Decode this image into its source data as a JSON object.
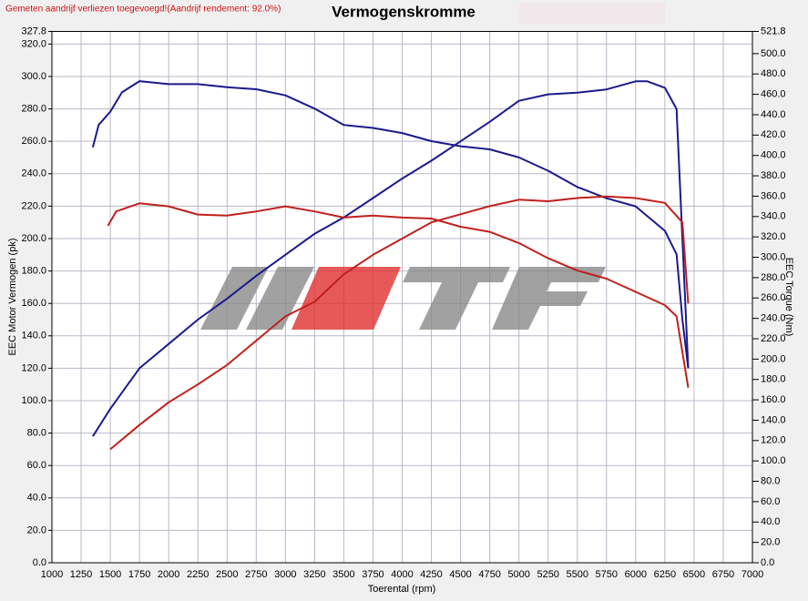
{
  "chart_data": {
    "type": "line",
    "title": "Vermogenskromme",
    "note": "Gemeten aandrijf verliezen toegevoegd!(Aandrijf rendement: 92.0%)",
    "xlabel": "Toerental (rpm)",
    "ylabel": "EEC Motor Vermogen (pk)",
    "y2label": "EEC Torque (Nm)",
    "xlim": [
      1000,
      7000
    ],
    "xticks": [
      1000,
      1250,
      1500,
      1750,
      2000,
      2250,
      2500,
      2750,
      3000,
      3250,
      3500,
      3750,
      4000,
      4250,
      4500,
      4750,
      5000,
      5250,
      5500,
      5750,
      6000,
      6250,
      6500,
      6750,
      7000
    ],
    "ylim": [
      0,
      327.8
    ],
    "yticks": [
      {
        "value": 0,
        "label": "0.0"
      },
      {
        "value": 20,
        "label": "20.0"
      },
      {
        "value": 40,
        "label": "40.0"
      },
      {
        "value": 60,
        "label": "60.0"
      },
      {
        "value": 80,
        "label": "80.0"
      },
      {
        "value": 100,
        "label": "100.0"
      },
      {
        "value": 120,
        "label": "120.0"
      },
      {
        "value": 140,
        "label": "140.0"
      },
      {
        "value": 160,
        "label": "160.0"
      },
      {
        "value": 180,
        "label": "180.0"
      },
      {
        "value": 200,
        "label": "200.0"
      },
      {
        "value": 220,
        "label": "220.0"
      },
      {
        "value": 240,
        "label": "240.0"
      },
      {
        "value": 260,
        "label": "260.0"
      },
      {
        "value": 280,
        "label": "280.0"
      },
      {
        "value": 300,
        "label": "300.0"
      },
      {
        "value": 320,
        "label": "320.0"
      },
      327.8
    ],
    "y2lim": [
      0,
      521.8
    ],
    "y2ticks": [
      {
        "value": 0,
        "label": "0.0"
      },
      {
        "value": 20,
        "label": "20.0"
      },
      {
        "value": 40,
        "label": "40.0"
      },
      {
        "value": 60,
        "label": "60.0"
      },
      {
        "value": 80,
        "label": "80.0"
      },
      {
        "value": 100,
        "label": "100.0"
      },
      {
        "value": 120,
        "label": "120.0"
      },
      {
        "value": 140,
        "label": "140.0"
      },
      {
        "value": 160,
        "label": "160.0"
      },
      {
        "value": 180,
        "label": "180.0"
      },
      {
        "value": 200,
        "label": "200.0"
      },
      {
        "value": 220,
        "label": "220.0"
      },
      {
        "value": 240,
        "label": "240.0"
      },
      {
        "value": 260,
        "label": "260.0"
      },
      {
        "value": 280,
        "label": "280.0"
      },
      {
        "value": 300,
        "label": "300.0"
      },
      {
        "value": 320,
        "label": "320.0"
      },
      {
        "value": 340,
        "label": "340.0"
      },
      {
        "value": 360,
        "label": "360.0"
      },
      {
        "value": 380,
        "label": "380.0"
      },
      {
        "value": 400,
        "label": "400.0"
      },
      {
        "value": 420,
        "label": "420.0"
      },
      {
        "value": 440,
        "label": "440.0"
      },
      {
        "value": 460,
        "label": "460.0"
      },
      {
        "value": 480,
        "label": "480.0"
      },
      {
        "value": 500,
        "label": "500.0"
      },
      521.8
    ],
    "grid": true,
    "series": [
      {
        "color": "#1a1a8c",
        "axis": "y",
        "x": [
          1350,
          1500,
          1750,
          2000,
          2250,
          2500,
          2750,
          3000,
          3250,
          3500,
          3750,
          4000,
          4250,
          4500,
          4750,
          5000,
          5250,
          5500,
          5750,
          6000,
          6100,
          6250,
          6350,
          6400,
          6450
        ],
        "values": [
          78,
          95,
          120,
          135,
          150,
          163,
          177,
          190,
          203,
          213,
          225,
          237,
          248,
          260,
          272,
          285,
          289,
          290,
          292,
          297,
          297,
          293,
          280,
          200,
          120
        ]
      },
      {
        "color": "#1a1a8c",
        "axis": "y2",
        "x": [
          1350,
          1400,
          1500,
          1600,
          1750,
          2000,
          2250,
          2500,
          2750,
          3000,
          3250,
          3500,
          3750,
          4000,
          4250,
          4500,
          4750,
          5000,
          5250,
          5500,
          5750,
          6000,
          6250,
          6350,
          6400,
          6450
        ],
        "values": [
          408,
          430,
          443,
          462,
          473,
          470,
          470,
          467,
          465,
          459,
          446,
          430,
          427,
          422,
          414,
          409,
          406,
          398,
          385,
          369,
          358,
          350,
          326,
          303,
          239,
          191
        ]
      },
      {
        "color": "#c0201c",
        "axis": "y",
        "x": [
          1500,
          1750,
          2000,
          2250,
          2500,
          2750,
          3000,
          3250,
          3500,
          3750,
          4000,
          4250,
          4500,
          4750,
          5000,
          5250,
          5500,
          5750,
          6000,
          6250,
          6400,
          6450
        ],
        "values": [
          70,
          85,
          99,
          110,
          122,
          137,
          152,
          161,
          178,
          190,
          200,
          210,
          215,
          220,
          224,
          223,
          225,
          226,
          225,
          222,
          210,
          160
        ]
      },
      {
        "color": "#c0201c",
        "axis": "y2",
        "x": [
          1480,
          1550,
          1750,
          2000,
          2250,
          2500,
          2750,
          3000,
          3250,
          3500,
          3750,
          4000,
          4250,
          4500,
          4750,
          5000,
          5250,
          5500,
          5750,
          6000,
          6250,
          6350,
          6450
        ],
        "values": [
          331,
          345,
          353,
          350,
          342,
          341,
          345,
          350,
          345,
          339,
          341,
          339,
          338,
          330,
          325,
          314,
          299,
          287,
          279,
          266,
          253,
          242,
          172
        ]
      }
    ]
  }
}
